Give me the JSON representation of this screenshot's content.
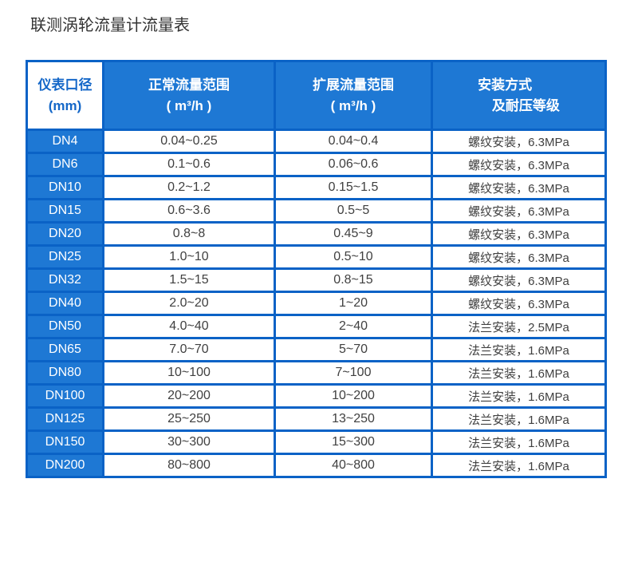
{
  "page": {
    "title": "联测涡轮流量计流量表"
  },
  "colors": {
    "accent_blue": "#1e78d4",
    "border_blue": "#0a62c6",
    "header_text": "#ffffff",
    "size_header_text": "#1467c8",
    "body_text": "#404040"
  },
  "chart_data": {
    "type": "table",
    "title": "联测涡轮流量计流量表",
    "columns": [
      {
        "line1": "仪表口径",
        "line2": "(mm)"
      },
      {
        "line1": "正常流量范围",
        "line2": "( m³/h )"
      },
      {
        "line1": "扩展流量范围",
        "line2": "( m³/h )"
      },
      {
        "line1": "安装方式",
        "line2": "及耐压等级"
      }
    ],
    "rows": [
      [
        "DN4",
        "0.04~0.25",
        "0.04~0.4",
        "螺纹安装，6.3MPa"
      ],
      [
        "DN6",
        "0.1~0.6",
        "0.06~0.6",
        "螺纹安装，6.3MPa"
      ],
      [
        "DN10",
        "0.2~1.2",
        "0.15~1.5",
        "螺纹安装，6.3MPa"
      ],
      [
        "DN15",
        "0.6~3.6",
        "0.5~5",
        "螺纹安装，6.3MPa"
      ],
      [
        "DN20",
        "0.8~8",
        "0.45~9",
        "螺纹安装，6.3MPa"
      ],
      [
        "DN25",
        "1.0~10",
        "0.5~10",
        "螺纹安装，6.3MPa"
      ],
      [
        "DN32",
        "1.5~15",
        "0.8~15",
        "螺纹安装，6.3MPa"
      ],
      [
        "DN40",
        "2.0~20",
        "1~20",
        "螺纹安装，6.3MPa"
      ],
      [
        "DN50",
        "4.0~40",
        "2~40",
        "法兰安装，2.5MPa"
      ],
      [
        "DN65",
        "7.0~70",
        "5~70",
        "法兰安装，1.6MPa"
      ],
      [
        "DN80",
        "10~100",
        "7~100",
        "法兰安装，1.6MPa"
      ],
      [
        "DN100",
        "20~200",
        "10~200",
        "法兰安装，1.6MPa"
      ],
      [
        "DN125",
        "25~250",
        "13~250",
        "法兰安装，1.6MPa"
      ],
      [
        "DN150",
        "30~300",
        "15~300",
        "法兰安装，1.6MPa"
      ],
      [
        "DN200",
        "80~800",
        "40~800",
        "法兰安装，1.6MPa"
      ]
    ]
  }
}
